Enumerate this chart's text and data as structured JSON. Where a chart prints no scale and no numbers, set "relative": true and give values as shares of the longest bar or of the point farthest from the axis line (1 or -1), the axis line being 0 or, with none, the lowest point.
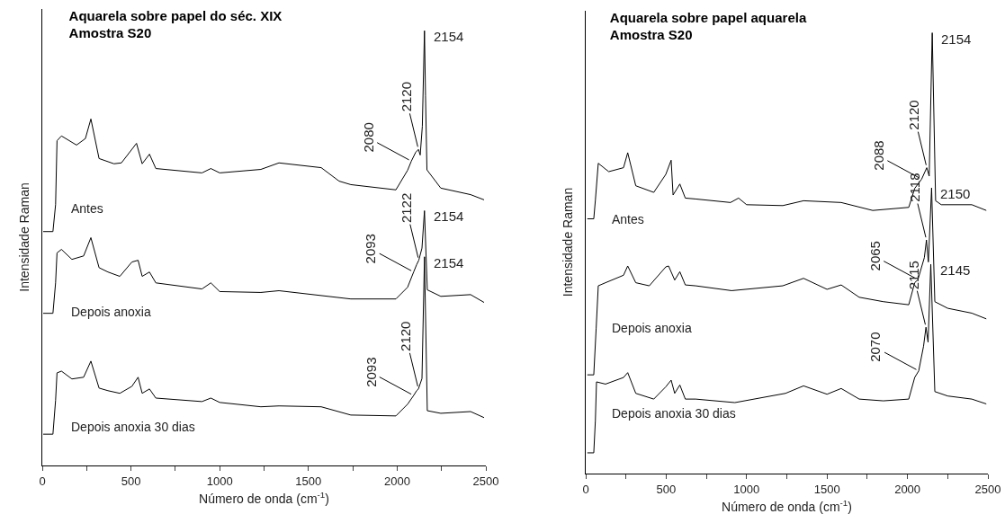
{
  "chart_data": [
    {
      "type": "line",
      "title": "Aquarela sobre papel do séc. XIX\nAmostra S20",
      "xlabel": "Número de onda (cm$^{-1}$)",
      "ylabel": "Intensidade Raman",
      "relative": true,
      "legend": false,
      "grid": false,
      "xlim": [
        0,
        2500
      ],
      "xticks": [
        0,
        {
          "value": 250,
          "label": null
        },
        500,
        {
          "value": 750,
          "label": null
        },
        1000,
        {
          "value": 1250,
          "label": null
        },
        1500,
        {
          "value": 1750,
          "label": null
        },
        2000,
        {
          "value": 2250,
          "label": null
        },
        2500
      ],
      "series": [
        {
          "name": "Antes",
          "color": "#000000",
          "x": [
            5,
            60,
            75,
            83,
            108,
            193,
            243,
            274,
            320,
            404,
            446,
            531,
            563,
            604,
            640,
            900,
            950,
            1000,
            1232,
            1334,
            1572,
            1673,
            1739,
            1993,
            2059,
            2080,
            2104,
            2120,
            2130,
            2142,
            2154,
            2160,
            2168,
            2246,
            2414,
            2490
          ],
          "values": [
            0.538,
            0.538,
            0.6,
            0.747,
            0.758,
            0.737,
            0.752,
            0.797,
            0.706,
            0.694,
            0.696,
            0.741,
            0.694,
            0.716,
            0.683,
            0.673,
            0.683,
            0.673,
            0.681,
            0.696,
            0.685,
            0.654,
            0.646,
            0.634,
            0.679,
            0.7,
            0.72,
            0.727,
            0.714,
            0.78,
            1.0,
            0.85,
            0.68,
            0.638,
            0.623,
            0.611
          ]
        },
        {
          "name": "Depois anoxia",
          "color": "#000000",
          "x": [
            5,
            60,
            75,
            83,
            108,
            167,
            233,
            274,
            320,
            370,
            437,
            505,
            540,
            563,
            604,
            640,
            900,
            950,
            1000,
            1232,
            1334,
            1739,
            1993,
            2059,
            2093,
            2110,
            2122,
            2140,
            2154,
            2170,
            2246,
            2414,
            2490
          ],
          "values": [
            0.35,
            0.35,
            0.42,
            0.489,
            0.497,
            0.474,
            0.482,
            0.524,
            0.455,
            0.445,
            0.435,
            0.468,
            0.472,
            0.435,
            0.445,
            0.42,
            0.406,
            0.42,
            0.4,
            0.398,
            0.402,
            0.383,
            0.383,
            0.41,
            0.445,
            0.462,
            0.472,
            0.5,
            0.586,
            0.404,
            0.389,
            0.393,
            0.375
          ]
        },
        {
          "name": "Depois anoxia 30 dias",
          "color": "#000000",
          "x": [
            5,
            60,
            75,
            83,
            108,
            167,
            233,
            274,
            320,
            370,
            437,
            505,
            540,
            563,
            604,
            640,
            900,
            950,
            1000,
            1232,
            1334,
            1572,
            1739,
            1993,
            2059,
            2093,
            2110,
            2120,
            2140,
            2154,
            2170,
            2246,
            2414,
            2490
          ],
          "values": [
            0.072,
            0.072,
            0.15,
            0.213,
            0.217,
            0.199,
            0.203,
            0.24,
            0.178,
            0.172,
            0.166,
            0.182,
            0.203,
            0.166,
            0.176,
            0.155,
            0.147,
            0.155,
            0.145,
            0.135,
            0.137,
            0.135,
            0.116,
            0.114,
            0.141,
            0.161,
            0.172,
            0.176,
            0.2,
            0.48,
            0.126,
            0.12,
            0.124,
            0.11
          ]
        }
      ],
      "annotations": [
        {
          "text": "2154",
          "x": 2154,
          "y": 1.0
        },
        {
          "text": "2080",
          "x": 2080,
          "y": 0.7
        },
        {
          "text": "2120",
          "x": 2120,
          "y": 0.727
        },
        {
          "text": "2154",
          "x": 2154,
          "y": 0.586
        },
        {
          "text": "2093",
          "x": 2093,
          "y": 0.445
        },
        {
          "text": "2122",
          "x": 2122,
          "y": 0.472
        },
        {
          "text": "2154",
          "x": 2154,
          "y": 0.48
        },
        {
          "text": "2093",
          "x": 2093,
          "y": 0.161
        },
        {
          "text": "2120",
          "x": 2120,
          "y": 0.176
        }
      ]
    },
    {
      "type": "line",
      "title": "Aquarela sobre papel aquarela\nAmostra S20",
      "xlabel": "Número de onda (cm$^{-1}$)",
      "ylabel": "Intensidade Raman",
      "relative": true,
      "legend": false,
      "grid": false,
      "xlim": [
        0,
        2500
      ],
      "xticks": [
        0,
        {
          "value": 250,
          "label": null
        },
        500,
        {
          "value": 750,
          "label": null
        },
        1000,
        {
          "value": 1250,
          "label": null
        },
        1500,
        {
          "value": 1750,
          "label": null
        },
        2000,
        {
          "value": 2250,
          "label": null
        },
        2500
      ],
      "series": [
        {
          "name": "Antes",
          "color": "#000000",
          "x": [
            10,
            50,
            60,
            78,
            143,
            235,
            261,
            311,
            423,
            498,
            531,
            543,
            585,
            619,
            683,
            900,
            950,
            1000,
            1225,
            1354,
            1588,
            1784,
            2008,
            2045,
            2088,
            2120,
            2135,
            2154,
            2175,
            2210,
            2400,
            2490
          ],
          "values": [
            0.578,
            0.578,
            0.62,
            0.704,
            0.685,
            0.694,
            0.728,
            0.653,
            0.638,
            0.679,
            0.711,
            0.632,
            0.657,
            0.625,
            0.623,
            0.615,
            0.625,
            0.61,
            0.608,
            0.619,
            0.615,
            0.597,
            0.604,
            0.647,
            0.668,
            0.694,
            0.675,
            1.0,
            0.619,
            0.61,
            0.61,
            0.597
          ]
        },
        {
          "name": "Depois anoxia",
          "color": "#000000",
          "x": [
            10,
            50,
            65,
            78,
            123,
            235,
            261,
            311,
            395,
            498,
            515,
            553,
            585,
            619,
            683,
            907,
            1225,
            1354,
            1500,
            1588,
            1700,
            1850,
            2008,
            2045,
            2065,
            2105,
            2118,
            2130,
            2150,
            2170,
            2250,
            2400,
            2490
          ],
          "values": [
            0.224,
            0.224,
            0.33,
            0.426,
            0.433,
            0.45,
            0.471,
            0.433,
            0.426,
            0.469,
            0.471,
            0.439,
            0.458,
            0.428,
            0.426,
            0.415,
            0.426,
            0.443,
            0.418,
            0.428,
            0.4,
            0.39,
            0.383,
            0.433,
            0.44,
            0.49,
            0.53,
            0.48,
            0.648,
            0.39,
            0.375,
            0.364,
            0.351
          ]
        },
        {
          "name": "Depois anoxia 30 dias",
          "color": "#000000",
          "x": [
            10,
            50,
            60,
            67,
            123,
            235,
            261,
            311,
            423,
            498,
            531,
            553,
            585,
            619,
            683,
            927,
            1242,
            1354,
            1500,
            1588,
            1700,
            1850,
            2008,
            2045,
            2070,
            2100,
            2115,
            2128,
            2145,
            2170,
            2250,
            2400,
            2490
          ],
          "values": [
            0.047,
            0.047,
            0.12,
            0.208,
            0.203,
            0.218,
            0.229,
            0.182,
            0.169,
            0.197,
            0.212,
            0.182,
            0.201,
            0.169,
            0.169,
            0.161,
            0.182,
            0.199,
            0.18,
            0.193,
            0.169,
            0.165,
            0.169,
            0.218,
            0.233,
            0.289,
            0.332,
            0.298,
            0.475,
            0.186,
            0.176,
            0.169,
            0.158
          ]
        }
      ],
      "annotations": [
        {
          "text": "2154",
          "x": 2154,
          "y": 1.0
        },
        {
          "text": "2120",
          "x": 2120,
          "y": 0.694
        },
        {
          "text": "2088",
          "x": 2088,
          "y": 0.668
        },
        {
          "text": "2150",
          "x": 2150,
          "y": 0.648
        },
        {
          "text": "2118",
          "x": 2118,
          "y": 0.53
        },
        {
          "text": "2065",
          "x": 2065,
          "y": 0.44
        },
        {
          "text": "2145",
          "x": 2145,
          "y": 0.475
        },
        {
          "text": "2115",
          "x": 2115,
          "y": 0.332
        },
        {
          "text": "2070",
          "x": 2070,
          "y": 0.233
        }
      ]
    }
  ]
}
